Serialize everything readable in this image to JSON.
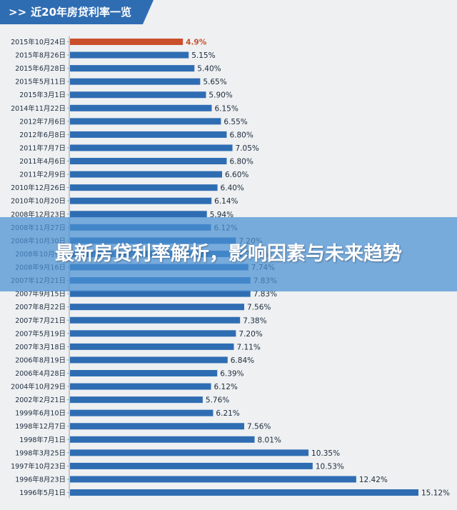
{
  "header": {
    "arrows": ">>",
    "title": "近20年房贷利率一览"
  },
  "banner": {
    "text": "最新房贷利率解析，影响因素与未来趋势"
  },
  "colors": {
    "bar": "#2f6db3",
    "highlight": "#c9502b",
    "label": "#1c2b3c",
    "axis": "#9aa4ae"
  },
  "chart_data": {
    "type": "bar",
    "orientation": "horizontal",
    "title": "近20年房贷利率一览",
    "categories": [
      "2015年10月24日",
      "2015年8月26日",
      "2015年6月28日",
      "2015年5月11日",
      "2015年3月1日",
      "2014年11月22日",
      "2012年7月6日",
      "2012年6月8日",
      "2011年7月7日",
      "2011年4月6日",
      "2011年2月9日",
      "2010年12月26日",
      "2010年10月20日",
      "2008年12月23日",
      "2008年11月27日",
      "2008年10月30日",
      "2008年10月9日",
      "2008年9月16日",
      "2007年12月21日",
      "2007年9月15日",
      "2007年8月22日",
      "2007年7月21日",
      "2007年5月19日",
      "2007年3月18日",
      "2006年8月19日",
      "2006年4月28日",
      "2004年10月29日",
      "2002年2月21日",
      "1999年6月10日",
      "1998年12月7日",
      "1998年7月1日",
      "1998年3月25日",
      "1997年10月23日",
      "1996年8月23日",
      "1996年5月1日"
    ],
    "values": [
      4.9,
      5.15,
      5.4,
      5.65,
      5.9,
      6.15,
      6.55,
      6.8,
      7.05,
      6.8,
      6.6,
      6.4,
      6.14,
      5.94,
      6.12,
      7.2,
      7.47,
      7.74,
      7.83,
      7.83,
      7.56,
      7.38,
      7.2,
      7.11,
      6.84,
      6.39,
      6.12,
      5.76,
      6.21,
      7.56,
      8.01,
      10.35,
      10.53,
      12.42,
      15.12
    ],
    "value_labels": [
      "4.9%",
      "5.15%",
      "5.40%",
      "5.65%",
      "5.90%",
      "6.15%",
      "6.55%",
      "6.80%",
      "7.05%",
      "6.80%",
      "6.60%",
      "6.40%",
      "6.14%",
      "5.94%",
      "6.12%",
      "7.20%",
      "7.47%",
      "7.74%",
      "7.83%",
      "7.83%",
      "7.56%",
      "7.38%",
      "7.20%",
      "7.11%",
      "6.84%",
      "6.39%",
      "6.12%",
      "5.76%",
      "6.21%",
      "7.56%",
      "8.01%",
      "10.35%",
      "10.53%",
      "12.42%",
      "15.12%"
    ],
    "highlight_index": 0,
    "xlim": [
      0,
      15.12
    ],
    "grid": false,
    "legend": "none"
  }
}
